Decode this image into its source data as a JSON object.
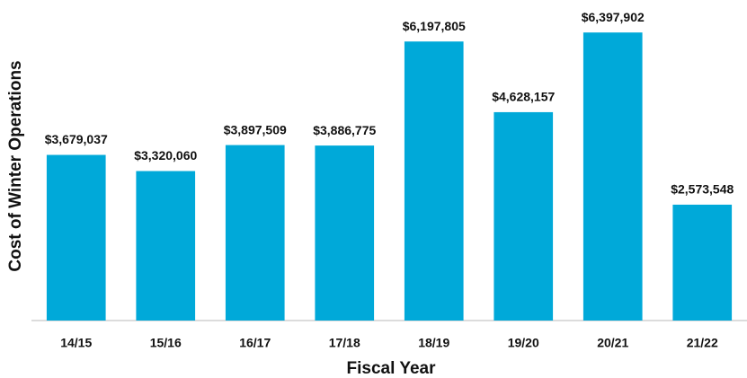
{
  "chart_data": {
    "type": "bar",
    "x_label": "Fiscal Year",
    "y_label": "Cost of Winter Operations",
    "categories": [
      "14/15",
      "15/16",
      "16/17",
      "17/18",
      "18/19",
      "19/20",
      "20/21",
      "21/22"
    ],
    "values": [
      3679037,
      3320060,
      3897509,
      3886775,
      6197805,
      4628157,
      6397902,
      2573548
    ],
    "value_labels": [
      "$3,679,037",
      "$3,320,060",
      "$3,897,509",
      "$3,886,775",
      "$6,197,805",
      "$4,628,157",
      "$6,397,902",
      "$2,573,548"
    ],
    "color": "#00a9d9",
    "ylim": [
      0,
      7000000
    ],
    "grid": false
  }
}
